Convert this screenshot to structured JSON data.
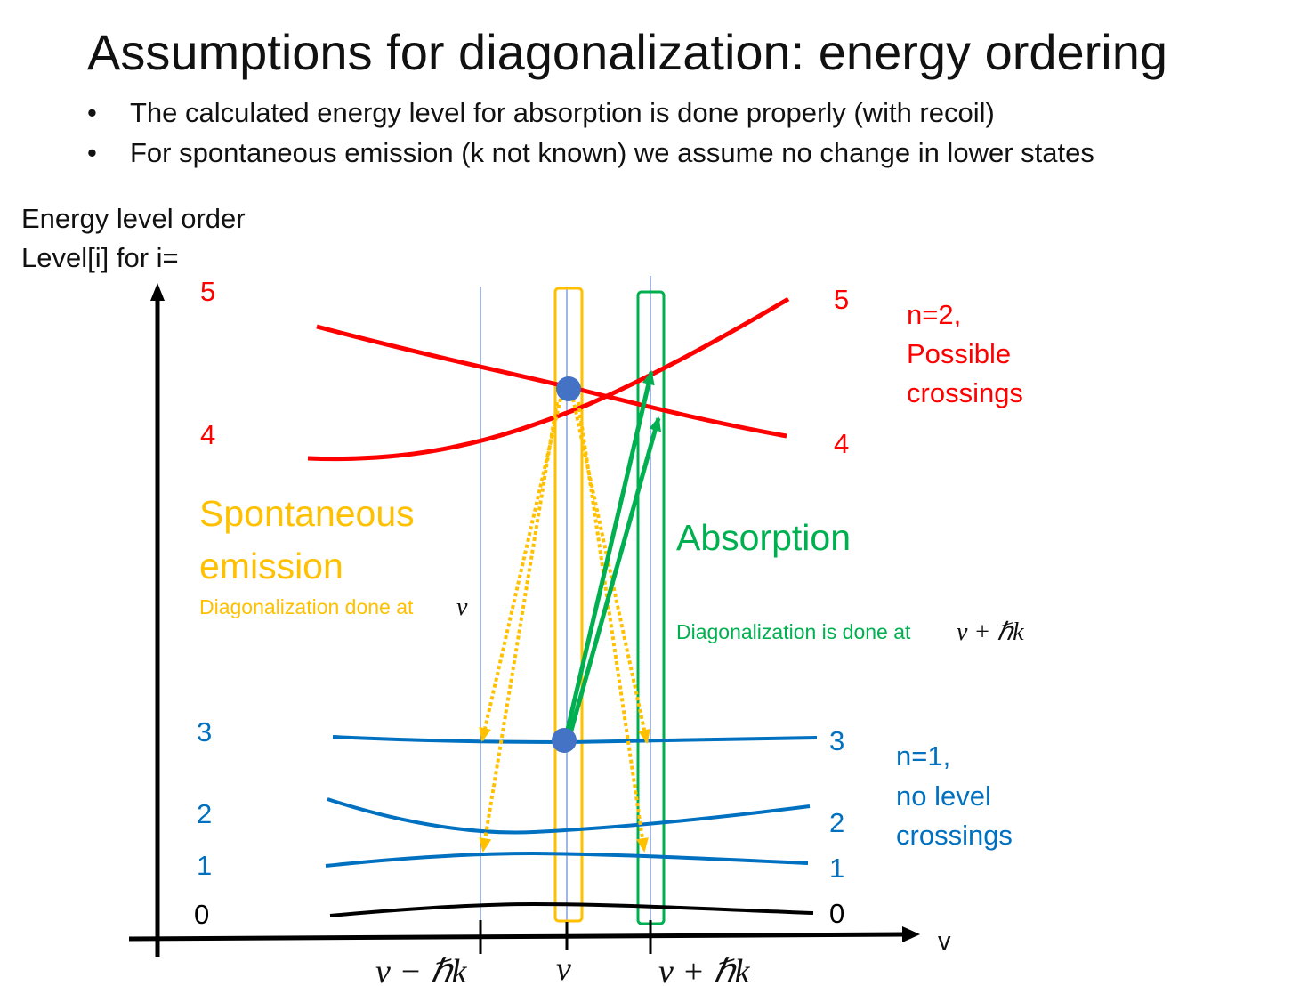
{
  "title": "Assumptions for diagonalization: energy ordering",
  "bullets": [
    "The calculated energy level for absorption is done properly (with recoil)",
    "For spontaneous emission (k not known) we assume no change in lower states"
  ],
  "y_axis_label": [
    "Energy level order",
    "Level[i] for i="
  ],
  "x_axis_label": "v",
  "x_ticks": [
    "v − ℏk",
    "v",
    "v + ℏk"
  ],
  "levels_left": [
    "5",
    "4",
    "3",
    "2",
    "1",
    "0"
  ],
  "levels_right": [
    "5",
    "4",
    "3",
    "2",
    "1",
    "0"
  ],
  "n2_label": [
    "n=2,",
    "Possible",
    "crossings"
  ],
  "n1_label": [
    "n=1,",
    "no level",
    "crossings"
  ],
  "spontaneous": {
    "title": [
      "Spontaneous",
      "emission"
    ],
    "note": "Diagonalization done at",
    "note_math": "v"
  },
  "absorption": {
    "title": "Absorption",
    "note": "Diagonalization is done at",
    "note_math": "v + ℏk"
  },
  "colors": {
    "upper": "#ff0000",
    "lower": "#0070c0",
    "ground": "#000000",
    "spontaneous": "#ffc000",
    "absorption": "#00b050",
    "atom": "#4472c4"
  }
}
